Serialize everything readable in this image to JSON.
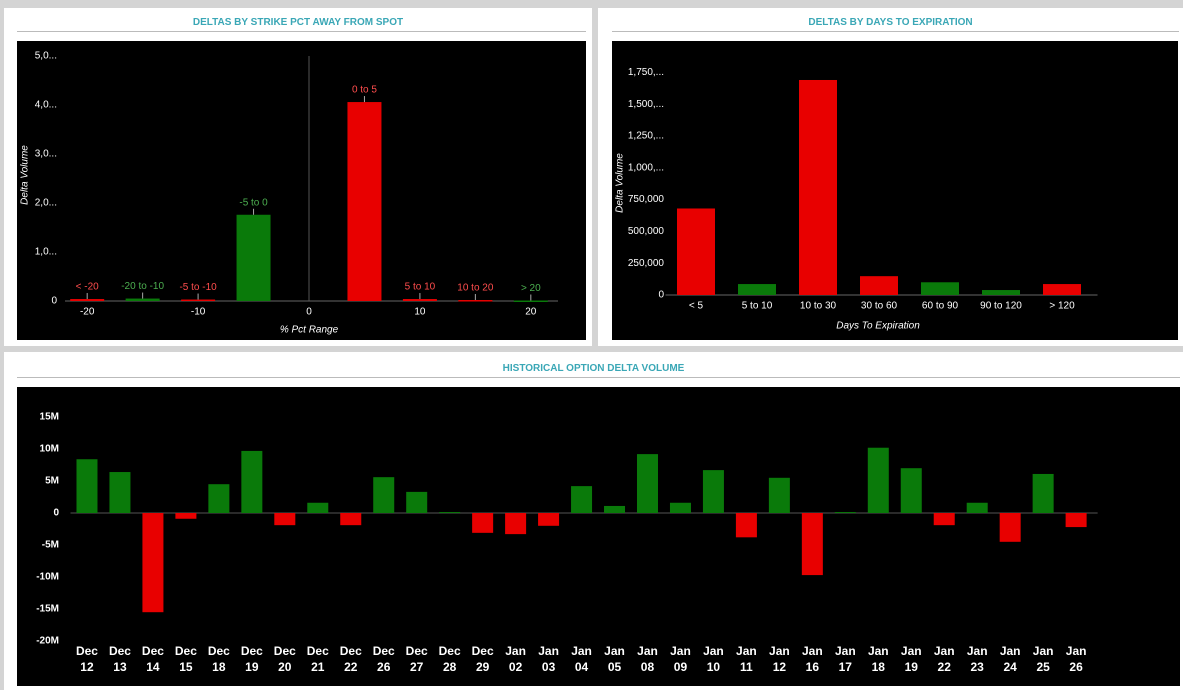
{
  "chart_data": [
    {
      "type": "bar",
      "title": "DELTAS BY STRIKE PCT AWAY FROM SPOT",
      "x_label": "% Pct Range",
      "y_label": "Delta Volume",
      "x": [
        -20,
        -15,
        -10,
        -5,
        5,
        10,
        15,
        20
      ],
      "labels": [
        "< -20",
        "-20 to -10",
        "-5 to -10",
        "-5 to 0",
        "0 to 5",
        "5 to 10",
        "10 to 20",
        "> 20"
      ],
      "values": [
        40000,
        50000,
        30000,
        1760000,
        4060000,
        40000,
        20000,
        10000
      ],
      "colors": [
        "#e80000",
        "#0a7a0a",
        "#e80000",
        "#0a7a0a",
        "#e80000",
        "#e80000",
        "#e80000",
        "#0a7a0a"
      ],
      "label_colors": [
        "#ff4d4d",
        "#4caf50",
        "#ff4d4d",
        "#4caf50",
        "#ff4d4d",
        "#ff4d4d",
        "#ff4d4d",
        "#4caf50"
      ],
      "xlim": [
        -22,
        22
      ],
      "xticks": [
        -20,
        -10,
        0,
        10,
        20
      ],
      "ylim": [
        0,
        5000000
      ],
      "yticks": [
        0,
        {
          "value": 1000000,
          "label": "1,0..."
        },
        {
          "value": 2000000,
          "label": "2,0..."
        },
        {
          "value": 3000000,
          "label": "3,0..."
        },
        {
          "value": 4000000,
          "label": "4,0..."
        },
        {
          "value": 5000000,
          "label": "5,0..."
        }
      ]
    },
    {
      "type": "bar",
      "title": "DELTAS BY DAYS TO EXPIRATION",
      "x_label": "Days To Expiration",
      "y_label": "Delta Volume",
      "categories": [
        "< 5",
        "5 to 10",
        "10 to 30",
        "30 to 60",
        "60 to 90",
        "90 to 120",
        "> 120"
      ],
      "values": [
        680000,
        86000,
        1690000,
        148000,
        100000,
        39000,
        86000
      ],
      "colors": [
        "#e80000",
        "#0a7a0a",
        "#e80000",
        "#e80000",
        "#0a7a0a",
        "#0a7a0a",
        "#e80000"
      ],
      "ylim": [
        0,
        1800000
      ],
      "yticks": [
        0,
        {
          "value": 250000,
          "label": "250,000"
        },
        {
          "value": 500000,
          "label": "500,000"
        },
        {
          "value": 750000,
          "label": "750,000"
        },
        {
          "value": 1000000,
          "label": "1,000,..."
        },
        {
          "value": 1250000,
          "label": "1,250,..."
        },
        {
          "value": 1500000,
          "label": "1,500,..."
        },
        {
          "value": 1750000,
          "label": "1,750,..."
        }
      ]
    },
    {
      "type": "bar",
      "title": "HISTORICAL OPTION DELTA VOLUME",
      "categories": [
        "Dec 12",
        "Dec 13",
        "Dec 14",
        "Dec 15",
        "Dec 18",
        "Dec 19",
        "Dec 20",
        "Dec 21",
        "Dec 22",
        "Dec 26",
        "Dec 27",
        "Dec 28",
        "Dec 29",
        "Jan 02",
        "Jan 03",
        "Jan 04",
        "Jan 05",
        "Jan 08",
        "Jan 09",
        "Jan 10",
        "Jan 11",
        "Jan 12",
        "Jan 16",
        "Jan 17",
        "Jan 18",
        "Jan 19",
        "Jan 22",
        "Jan 23",
        "Jan 24",
        "Jan 25",
        "Jan 26"
      ],
      "values": [
        8400000,
        6400000,
        -15500000,
        -900000,
        4500000,
        9700000,
        -1900000,
        1600000,
        -1900000,
        5600000,
        3300000,
        150000,
        -3100000,
        -3300000,
        -2000000,
        4200000,
        1100000,
        9200000,
        1600000,
        6700000,
        -3800000,
        5500000,
        -9700000,
        150000,
        10200000,
        7000000,
        -1900000,
        1600000,
        -4500000,
        6100000,
        -2200000
      ],
      "positive_color": "#0a7a0a",
      "negative_color": "#e80000",
      "ylim": [
        -20000000,
        15000000
      ],
      "yticks": [
        {
          "value": -20000000,
          "label": "-20M"
        },
        {
          "value": -15000000,
          "label": "-15M"
        },
        {
          "value": -10000000,
          "label": "-10M"
        },
        {
          "value": -5000000,
          "label": "-5M"
        },
        0,
        {
          "value": 5000000,
          "label": "5M"
        },
        {
          "value": 10000000,
          "label": "10M"
        },
        {
          "value": 15000000,
          "label": "15M"
        }
      ]
    }
  ]
}
